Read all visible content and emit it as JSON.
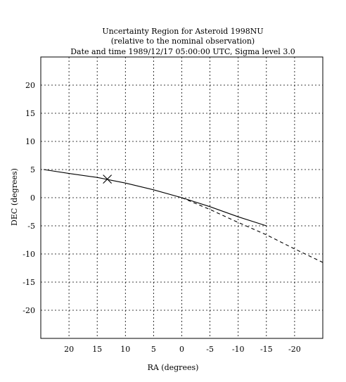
{
  "chart_data": {
    "type": "line",
    "title": [
      "Uncertainty Region for Asteroid 1998NU",
      "(relative to the nominal observation)",
      "Date and time 1989/12/17 05:00:00 UTC, Sigma level  3.0"
    ],
    "xlabel": "RA (degrees)",
    "ylabel": "DEC (degrees)",
    "xlim": [
      25,
      -25
    ],
    "ylim": [
      -25,
      25
    ],
    "x_reversed": true,
    "x_ticks": [
      20,
      15,
      10,
      5,
      0,
      -5,
      -10,
      -15,
      -20
    ],
    "x_tick_labels": [
      "20",
      "15",
      "10",
      "5",
      "0",
      "-5",
      "-10",
      "-15",
      "-20"
    ],
    "y_ticks": [
      20,
      15,
      10,
      5,
      0,
      -5,
      -10,
      -15,
      -20
    ],
    "y_tick_labels": [
      "20",
      "15",
      "10",
      "5",
      "0",
      "-5",
      "-10",
      "-15",
      "-20"
    ],
    "grid": true,
    "grid_style": "dotted",
    "series": [
      {
        "style": "solid",
        "color": "#000000",
        "x": [
          24.5,
          20,
          15,
          13,
          10,
          5,
          0,
          -5,
          -10,
          -15
        ],
        "y": [
          5.0,
          4.3,
          3.6,
          3.2,
          2.6,
          1.4,
          0.0,
          -1.6,
          -3.4,
          -5.0
        ]
      },
      {
        "style": "dashed",
        "color": "#000000",
        "x": [
          0,
          -5,
          -10,
          -15,
          -20,
          -25
        ],
        "y": [
          0.0,
          -2.1,
          -4.4,
          -6.6,
          -9.1,
          -11.5
        ]
      }
    ],
    "markers": [
      {
        "symbol": "x",
        "x": 13.2,
        "y": 3.3
      }
    ]
  }
}
